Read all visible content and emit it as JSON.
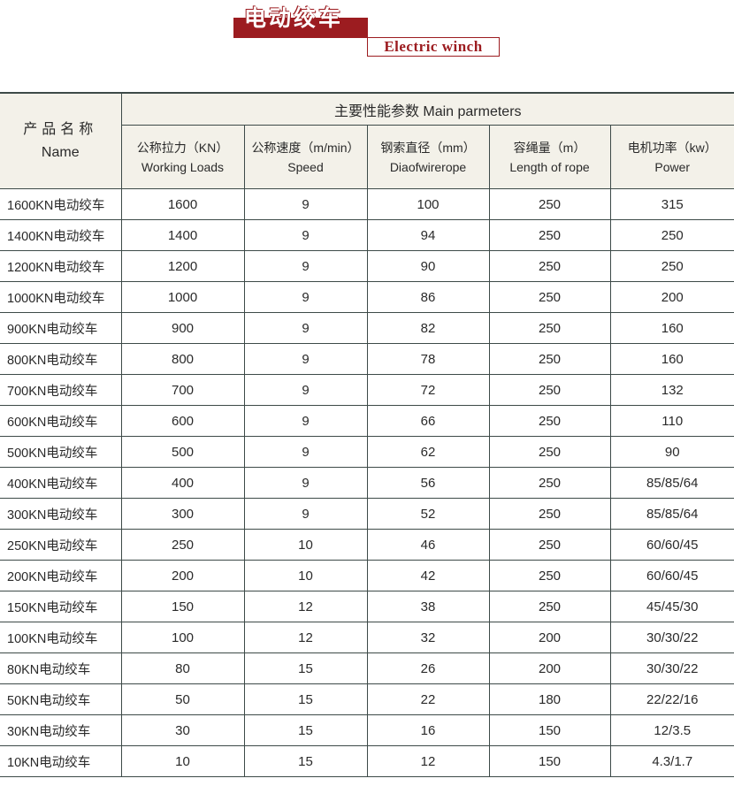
{
  "title": {
    "cn": "电动绞车",
    "en": "Electric winch"
  },
  "table": {
    "name_header": {
      "cn": "产品名称",
      "en": "Name"
    },
    "main_header": "主要性能参数  Main parmeters",
    "columns": [
      {
        "cn": "公称拉力（KN）",
        "en": "Working Loads"
      },
      {
        "cn": "公称速度（m/min）",
        "en": "Speed"
      },
      {
        "cn": "钢索直径（mm）",
        "en": "Diaofwirerope"
      },
      {
        "cn": "容绳量（m）",
        "en": "Length of rope"
      },
      {
        "cn": "电机功率（kw）",
        "en": "Power"
      }
    ],
    "rows": [
      [
        "1600KN电动绞车",
        "1600",
        "9",
        "100",
        "250",
        "315"
      ],
      [
        "1400KN电动绞车",
        "1400",
        "9",
        "94",
        "250",
        "250"
      ],
      [
        "1200KN电动绞车",
        "1200",
        "9",
        "90",
        "250",
        "250"
      ],
      [
        "1000KN电动绞车",
        "1000",
        "9",
        "86",
        "250",
        "200"
      ],
      [
        "900KN电动绞车",
        "900",
        "9",
        "82",
        "250",
        "160"
      ],
      [
        "800KN电动绞车",
        "800",
        "9",
        "78",
        "250",
        "160"
      ],
      [
        "700KN电动绞车",
        "700",
        "9",
        "72",
        "250",
        "132"
      ],
      [
        "600KN电动绞车",
        "600",
        "9",
        "66",
        "250",
        "110"
      ],
      [
        "500KN电动绞车",
        "500",
        "9",
        "62",
        "250",
        "90"
      ],
      [
        "400KN电动绞车",
        "400",
        "9",
        "56",
        "250",
        "85/85/64"
      ],
      [
        "300KN电动绞车",
        "300",
        "9",
        "52",
        "250",
        "85/85/64"
      ],
      [
        "250KN电动绞车",
        "250",
        "10",
        "46",
        "250",
        "60/60/45"
      ],
      [
        "200KN电动绞车",
        "200",
        "10",
        "42",
        "250",
        "60/60/45"
      ],
      [
        "150KN电动绞车",
        "150",
        "12",
        "38",
        "250",
        "45/45/30"
      ],
      [
        "100KN电动绞车",
        "100",
        "12",
        "32",
        "200",
        "30/30/22"
      ],
      [
        "80KN电动绞车",
        "80",
        "15",
        "26",
        "200",
        "30/30/22"
      ],
      [
        "50KN电动绞车",
        "50",
        "15",
        "22",
        "180",
        "22/22/16"
      ],
      [
        "30KN电动绞车",
        "30",
        "15",
        "16",
        "150",
        "12/3.5"
      ],
      [
        "10KN电动绞车",
        "10",
        "15",
        "12",
        "150",
        "4.3/1.7"
      ]
    ]
  },
  "colors": {
    "brand_red": "#9c1c20",
    "header_bg": "#f3f1e9",
    "rule": "#3d4a48"
  }
}
